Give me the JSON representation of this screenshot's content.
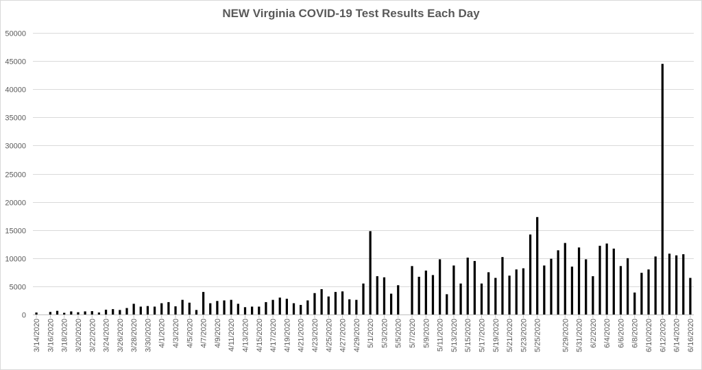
{
  "chart_data": {
    "type": "bar",
    "title": "NEW Virginia COVID-19 Test Results Each Day",
    "xlabel": "",
    "ylabel": "",
    "ylim": [
      0,
      50000
    ],
    "ytick_step": 5000,
    "grid": true,
    "legend": "none",
    "bar_color": "#000000",
    "categories": [
      "3/14/2020",
      "3/15/2020",
      "3/16/2020",
      "3/17/2020",
      "3/18/2020",
      "3/19/2020",
      "3/20/2020",
      "3/21/2020",
      "3/22/2020",
      "3/23/2020",
      "3/24/2020",
      "3/25/2020",
      "3/26/2020",
      "3/27/2020",
      "3/28/2020",
      "3/29/2020",
      "3/30/2020",
      "3/31/2020",
      "4/1/2020",
      "4/2/2020",
      "4/3/2020",
      "4/4/2020",
      "4/5/2020",
      "4/6/2020",
      "4/7/2020",
      "4/8/2020",
      "4/9/2020",
      "4/10/2020",
      "4/11/2020",
      "4/12/2020",
      "4/13/2020",
      "4/14/2020",
      "4/15/2020",
      "4/16/2020",
      "4/17/2020",
      "4/18/2020",
      "4/19/2020",
      "4/20/2020",
      "4/21/2020",
      "4/22/2020",
      "4/23/2020",
      "4/24/2020",
      "4/25/2020",
      "4/26/2020",
      "4/27/2020",
      "4/28/2020",
      "4/29/2020",
      "4/30/2020",
      "5/1/2020",
      "5/2/2020",
      "5/3/2020",
      "5/4/2020",
      "5/5/2020",
      "5/6/2020",
      "5/7/2020",
      "5/8/2020",
      "5/9/2020",
      "5/10/2020",
      "5/11/2020",
      "5/12/2020",
      "5/13/2020",
      "5/14/2020",
      "5/15/2020",
      "5/16/2020",
      "5/17/2020",
      "5/18/2020",
      "5/19/2020",
      "5/20/2020",
      "5/21/2020",
      "5/22/2020",
      "5/23/2020",
      "5/24/2020",
      "5/25/2020",
      "5/26/2020",
      "5/27/2020",
      "5/28/2020",
      "5/29/2020",
      "5/30/2020",
      "5/31/2020",
      "6/1/2020",
      "6/2/2020",
      "6/3/2020",
      "6/4/2020",
      "6/5/2020",
      "6/6/2020",
      "6/7/2020",
      "6/8/2020",
      "6/9/2020",
      "6/10/2020",
      "6/11/2020",
      "6/12/2020",
      "6/13/2020",
      "6/14/2020",
      "6/15/2020",
      "6/16/2020"
    ],
    "tick_labels": [
      "3/14/2020",
      "3/16/2020",
      "3/18/2020",
      "3/20/2020",
      "3/22/2020",
      "3/24/2020",
      "3/26/2020",
      "3/28/2020",
      "3/30/2020",
      "4/1/2020",
      "4/3/2020",
      "4/5/2020",
      "4/7/2020",
      "4/9/2020",
      "4/11/2020",
      "4/13/2020",
      "4/15/2020",
      "4/17/2020",
      "4/19/2020",
      "4/21/2020",
      "4/23/2020",
      "4/25/2020",
      "4/27/2020",
      "4/29/2020",
      "5/1/2020",
      "5/3/2020",
      "5/5/2020",
      "5/7/2020",
      "5/9/2020",
      "5/11/2020",
      "5/13/2020",
      "5/15/2020",
      "5/17/2020",
      "5/19/2020",
      "5/21/2020",
      "5/23/2020",
      "5/25/2020",
      "5/29/2020",
      "5/31/2020",
      "6/2/2020",
      "6/4/2020",
      "6/6/2020",
      "6/8/2020",
      "6/10/2020",
      "6/12/2020",
      "6/14/2020",
      "6/16/2020"
    ],
    "values": [
      350,
      0,
      450,
      650,
      300,
      550,
      400,
      550,
      600,
      350,
      850,
      950,
      800,
      1150,
      1900,
      1400,
      1500,
      1400,
      2000,
      2200,
      1450,
      2600,
      2100,
      800,
      4000,
      2000,
      2400,
      2500,
      2600,
      1900,
      1300,
      1400,
      1400,
      2200,
      2600,
      3000,
      2800,
      2000,
      1700,
      2500,
      3800,
      4500,
      3200,
      4000,
      4100,
      2700,
      2600,
      5500,
      14800,
      6800,
      6600,
      3700,
      5200,
      0,
      8600,
      6700,
      7800,
      7000,
      9800,
      3600,
      8700,
      5500,
      10100,
      9500,
      5500,
      7500,
      6500,
      10200,
      6900,
      8000,
      8200,
      14200,
      17300,
      8700,
      9900,
      11400,
      12700,
      8500,
      11900,
      9800,
      6800,
      12200,
      12600,
      11700,
      8600,
      10000,
      3900,
      7400,
      8000,
      10300,
      44500,
      10800,
      10500,
      10700,
      6500
    ]
  }
}
